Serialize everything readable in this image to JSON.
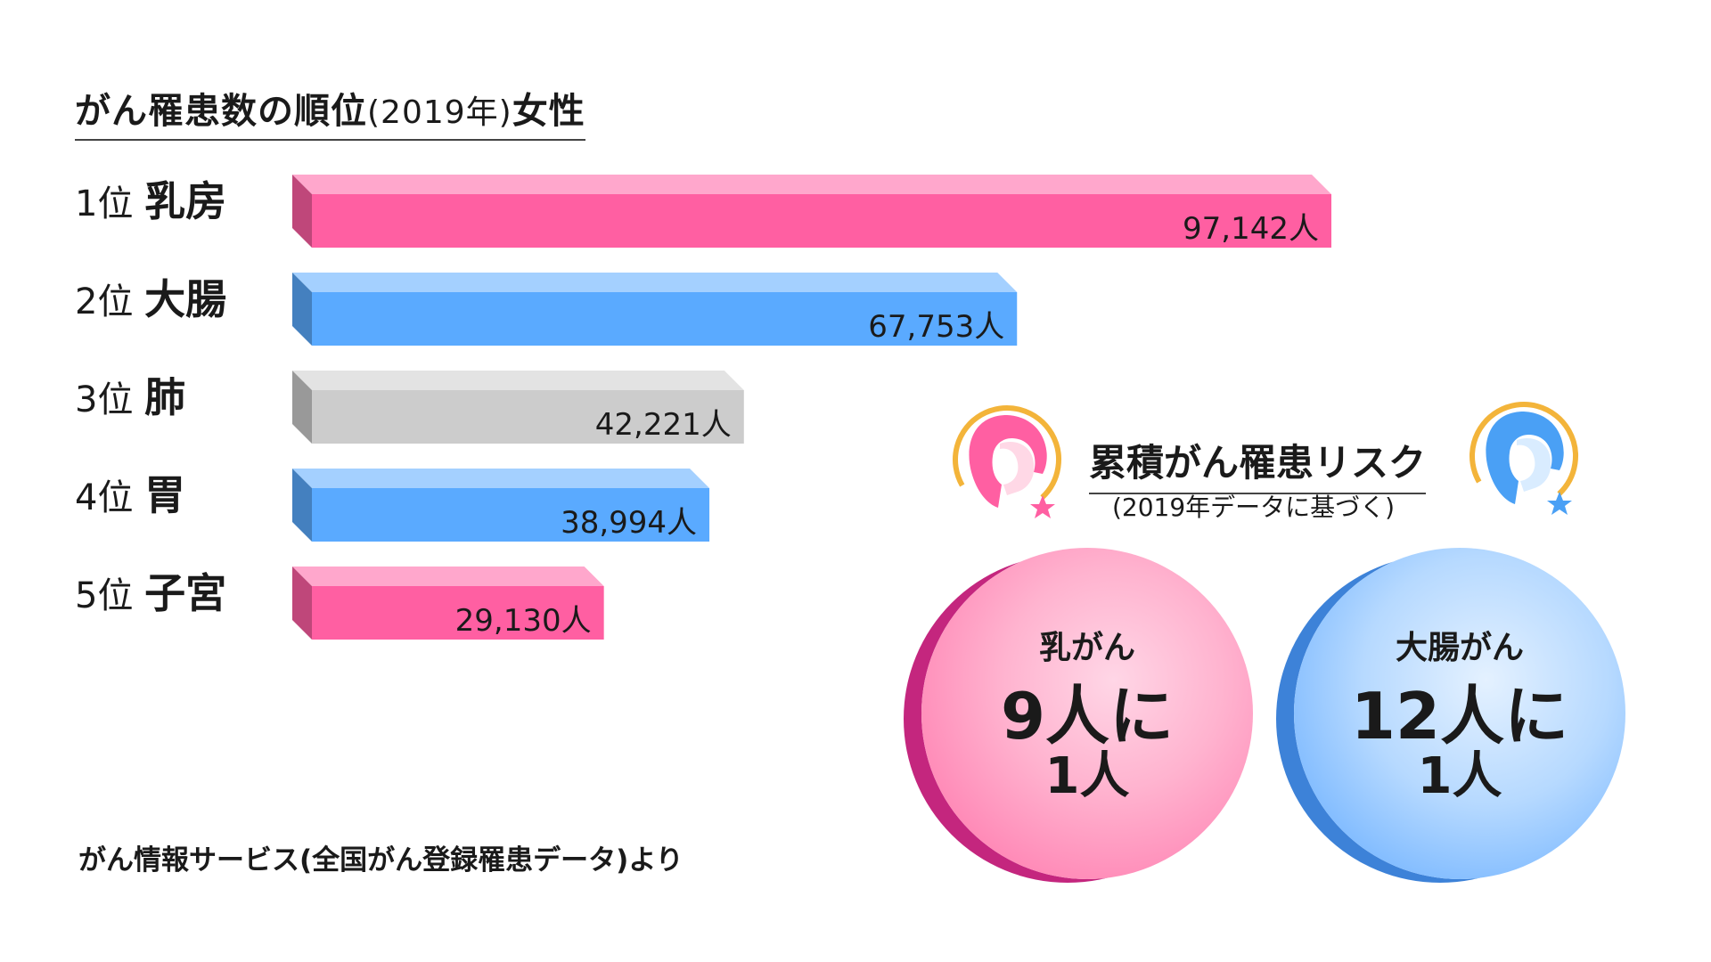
{
  "title": {
    "main": "がん罹患数の順位",
    "year": "(2019年)",
    "sex": "女性"
  },
  "chart_data": {
    "type": "bar",
    "orientation": "horizontal",
    "title": "がん罹患数の順位(2019年)女性",
    "unit": "人",
    "categories": [
      "乳房",
      "大腸",
      "肺",
      "胃",
      "子宮"
    ],
    "ranks": [
      "1位",
      "2位",
      "3位",
      "4位",
      "5位"
    ],
    "values": [
      97142,
      67753,
      42221,
      38994,
      29130
    ],
    "value_labels": [
      "97,142人",
      "67,753人",
      "42,221人",
      "38,994人",
      "29,130人"
    ],
    "colors": [
      "#ff5fa2",
      "#5aaaff",
      "#cccccc",
      "#5aaaff",
      "#ff5fa2"
    ],
    "xlim": [
      0,
      97142
    ]
  },
  "source": "がん情報サービス(全国がん登録罹患データ)より",
  "risk": {
    "title": "累積がん罹患リスク",
    "subtitle": "(2019年データに基づく)",
    "items": [
      {
        "label": "乳がん",
        "ratio": "9人に",
        "ratio2": "1人",
        "color": "#ff5fa2"
      },
      {
        "label": "大腸がん",
        "ratio": "12人に",
        "ratio2": "1人",
        "color": "#5aaaff"
      }
    ]
  }
}
